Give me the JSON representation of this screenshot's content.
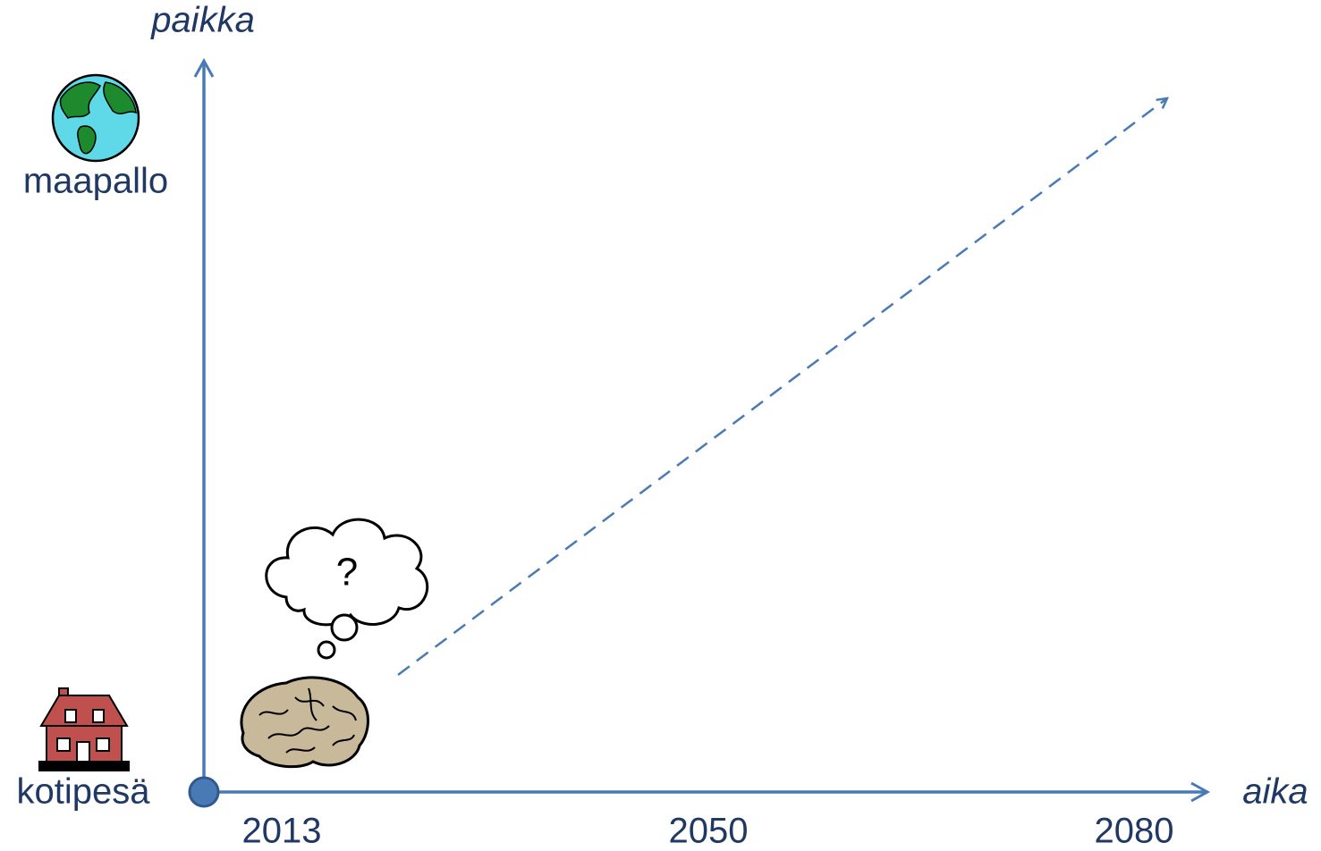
{
  "axes": {
    "y_label": "paikka",
    "x_label": "aika"
  },
  "places": {
    "top": "maapallo",
    "bottom": "kotipesä"
  },
  "years": [
    "2013",
    "2050",
    "2080"
  ],
  "thought": "?"
}
